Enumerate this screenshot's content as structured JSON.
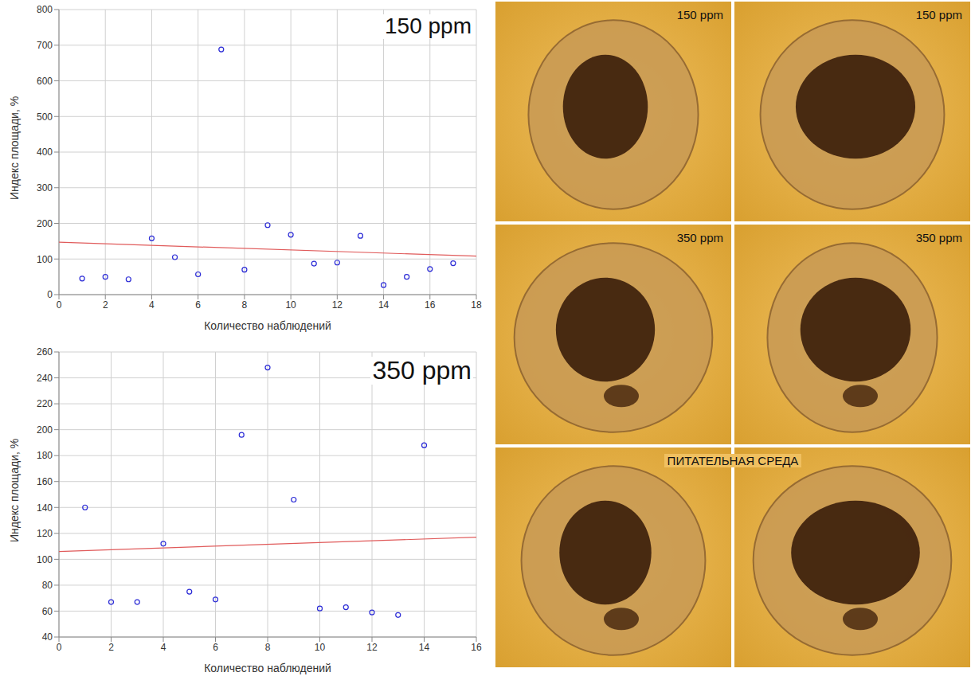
{
  "chart_data": [
    {
      "type": "scatter",
      "title": "150 ppm",
      "x_label": "Количество наблюдений",
      "y_label": "Индекс площади, %",
      "xlim": [
        0,
        18
      ],
      "xticks": [
        0,
        2,
        4,
        6,
        8,
        10,
        12,
        14,
        16,
        18
      ],
      "ylim": [
        0,
        800
      ],
      "yticks": [
        0,
        100,
        200,
        300,
        400,
        500,
        600,
        700,
        800
      ],
      "grid": true,
      "color": "#2b2bd6",
      "marker": "circle_open",
      "x": [
        1,
        2,
        3,
        4,
        5,
        6,
        7,
        8,
        9,
        10,
        11,
        12,
        13,
        14,
        15,
        16,
        17
      ],
      "values": [
        45,
        50,
        43,
        158,
        105,
        57,
        688,
        70,
        195,
        168,
        87,
        90,
        165,
        27,
        50,
        72,
        88
      ],
      "fit_line": {
        "x": [
          0,
          18
        ],
        "values": [
          147,
          108
        ],
        "color": "#e05a5a"
      }
    },
    {
      "type": "scatter",
      "title": "350 ppm",
      "x_label": "Количество наблюдений",
      "y_label": "Индекс площади, %",
      "xlim": [
        0,
        16
      ],
      "xticks": [
        0,
        2,
        4,
        6,
        8,
        10,
        12,
        14,
        16
      ],
      "ylim": [
        40,
        260
      ],
      "yticks": [
        40,
        60,
        80,
        100,
        120,
        140,
        160,
        180,
        200,
        220,
        240,
        260
      ],
      "grid": true,
      "color": "#2b2bd6",
      "marker": "circle_open",
      "x": [
        1,
        2,
        3,
        4,
        5,
        6,
        7,
        8,
        9,
        10,
        11,
        12,
        13,
        14
      ],
      "values": [
        140,
        67,
        67,
        112,
        75,
        69,
        196,
        248,
        146,
        62,
        63,
        59,
        57,
        188
      ],
      "fit_line": {
        "x": [
          0,
          16
        ],
        "values": [
          106,
          117
        ],
        "color": "#e05a5a"
      }
    }
  ],
  "photos": {
    "rows": [
      [
        "150 ppm",
        "150 ppm"
      ],
      [
        "350 ppm",
        "350 ppm"
      ]
    ],
    "caption": "ПИТАТЕЛЬНАЯ СРЕДА"
  }
}
